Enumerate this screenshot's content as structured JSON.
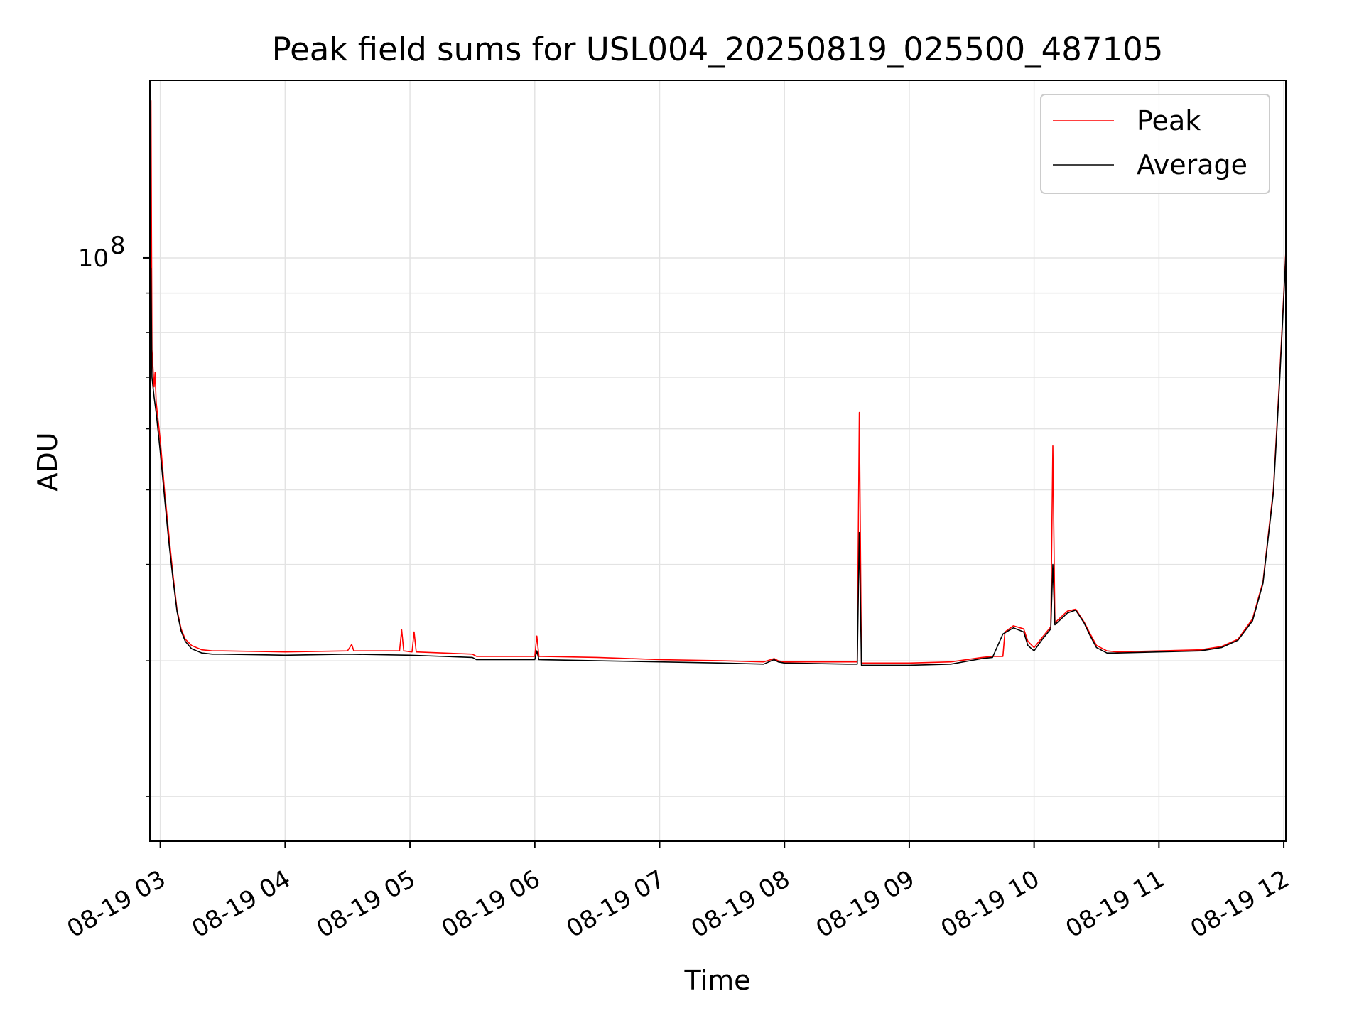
{
  "chart_data": {
    "type": "line",
    "title": "Peak field sums for USL004_20250819_025500_487105",
    "xlabel": "Time",
    "ylabel": "ADU",
    "y_scale": "log",
    "ylim": [
      17500000,
      170000000
    ],
    "xlim": [
      "2025-08-19 02:55",
      "2025-08-19 12:01"
    ],
    "x_ticks": [
      {
        "value": "2025-08-19 03:00",
        "label": "08-19 03"
      },
      {
        "value": "2025-08-19 04:00",
        "label": "08-19 04"
      },
      {
        "value": "2025-08-19 05:00",
        "label": "08-19 05"
      },
      {
        "value": "2025-08-19 06:00",
        "label": "08-19 06"
      },
      {
        "value": "2025-08-19 07:00",
        "label": "08-19 07"
      },
      {
        "value": "2025-08-19 08:00",
        "label": "08-19 08"
      },
      {
        "value": "2025-08-19 09:00",
        "label": "08-19 09"
      },
      {
        "value": "2025-08-19 10:00",
        "label": "08-19 10"
      },
      {
        "value": "2025-08-19 11:00",
        "label": "08-19 11"
      },
      {
        "value": "2025-08-19 12:00",
        "label": "08-19 12"
      }
    ],
    "y_major_ticks": [
      {
        "value": 100000000,
        "base": "10",
        "exponent": "8"
      }
    ],
    "y_minor_ticks": [
      20000000,
      30000000,
      40000000,
      50000000,
      60000000,
      70000000,
      80000000,
      90000000
    ],
    "grid": true,
    "legend_position": "top-right",
    "series": [
      {
        "name": "Peak",
        "color": "#ff0000",
        "x": [
          "2025-08-19 02:55",
          "2025-08-19 02:55:30",
          "2025-08-19 02:56",
          "2025-08-19 02:57",
          "2025-08-19 02:57:30",
          "2025-08-19 02:58",
          "2025-08-19 03:00",
          "2025-08-19 03:02",
          "2025-08-19 03:04",
          "2025-08-19 03:06",
          "2025-08-19 03:08",
          "2025-08-19 03:10",
          "2025-08-19 03:12",
          "2025-08-19 03:15",
          "2025-08-19 03:20",
          "2025-08-19 03:25",
          "2025-08-19 03:30",
          "2025-08-19 04:00",
          "2025-08-19 04:30",
          "2025-08-19 04:32",
          "2025-08-19 04:33",
          "2025-08-19 04:55",
          "2025-08-19 04:56",
          "2025-08-19 04:57",
          "2025-08-19 05:01",
          "2025-08-19 05:02",
          "2025-08-19 05:03",
          "2025-08-19 05:30",
          "2025-08-19 05:32",
          "2025-08-19 06:00",
          "2025-08-19 06:01",
          "2025-08-19 06:02",
          "2025-08-19 06:30",
          "2025-08-19 07:00",
          "2025-08-19 07:30",
          "2025-08-19 07:50",
          "2025-08-19 07:55",
          "2025-08-19 07:57",
          "2025-08-19 08:00",
          "2025-08-19 08:30",
          "2025-08-19 08:35",
          "2025-08-19 08:36",
          "2025-08-19 08:37",
          "2025-08-19 09:00",
          "2025-08-19 09:20",
          "2025-08-19 09:35",
          "2025-08-19 09:40",
          "2025-08-19 09:45",
          "2025-08-19 09:46",
          "2025-08-19 09:50",
          "2025-08-19 09:55",
          "2025-08-19 09:57",
          "2025-08-19 10:00",
          "2025-08-19 10:04",
          "2025-08-19 10:08",
          "2025-08-19 10:09",
          "2025-08-19 10:10",
          "2025-08-19 10:12",
          "2025-08-19 10:16",
          "2025-08-19 10:20",
          "2025-08-19 10:24",
          "2025-08-19 10:27",
          "2025-08-19 10:30",
          "2025-08-19 10:35",
          "2025-08-19 10:40",
          "2025-08-19 11:00",
          "2025-08-19 11:20",
          "2025-08-19 11:30",
          "2025-08-19 11:38",
          "2025-08-19 11:45",
          "2025-08-19 11:50",
          "2025-08-19 11:55",
          "2025-08-19 11:58",
          "2025-08-19 12:00",
          "2025-08-19 12:01"
        ],
        "y": [
          80000000,
          160000000,
          76000000,
          68000000,
          71000000,
          65000000,
          58000000,
          50000000,
          44000000,
          39000000,
          35000000,
          33000000,
          32000000,
          31400000,
          31000000,
          30900000,
          30900000,
          30800000,
          30900000,
          31500000,
          30900000,
          30900000,
          32900000,
          30900000,
          30800000,
          32700000,
          30800000,
          30600000,
          30400000,
          30400000,
          32300000,
          30400000,
          30300000,
          30100000,
          30000000,
          29900000,
          30200000,
          30000000,
          29900000,
          29900000,
          29900000,
          63000000,
          29800000,
          29800000,
          29900000,
          30300000,
          30400000,
          30400000,
          32700000,
          33300000,
          33000000,
          31800000,
          31200000,
          32200000,
          33200000,
          57000000,
          33600000,
          34000000,
          34800000,
          35000000,
          33700000,
          32500000,
          31400000,
          30900000,
          30800000,
          30900000,
          31000000,
          31300000,
          32000000,
          34000000,
          38000000,
          50000000,
          70000000,
          90000000,
          102000000
        ]
      },
      {
        "name": "Average",
        "color": "#000000",
        "x": [
          "2025-08-19 02:55",
          "2025-08-19 02:55:30",
          "2025-08-19 02:56",
          "2025-08-19 02:57",
          "2025-08-19 02:58",
          "2025-08-19 03:00",
          "2025-08-19 03:02",
          "2025-08-19 03:04",
          "2025-08-19 03:06",
          "2025-08-19 03:08",
          "2025-08-19 03:10",
          "2025-08-19 03:12",
          "2025-08-19 03:15",
          "2025-08-19 03:20",
          "2025-08-19 03:25",
          "2025-08-19 03:30",
          "2025-08-19 04:00",
          "2025-08-19 04:30",
          "2025-08-19 05:00",
          "2025-08-19 05:30",
          "2025-08-19 05:32",
          "2025-08-19 06:00",
          "2025-08-19 06:01",
          "2025-08-19 06:02",
          "2025-08-19 06:30",
          "2025-08-19 07:00",
          "2025-08-19 07:30",
          "2025-08-19 07:50",
          "2025-08-19 07:55",
          "2025-08-19 07:57",
          "2025-08-19 08:00",
          "2025-08-19 08:30",
          "2025-08-19 08:35",
          "2025-08-19 08:36",
          "2025-08-19 08:37",
          "2025-08-19 09:00",
          "2025-08-19 09:20",
          "2025-08-19 09:35",
          "2025-08-19 09:40",
          "2025-08-19 09:45",
          "2025-08-19 09:50",
          "2025-08-19 09:55",
          "2025-08-19 09:57",
          "2025-08-19 10:00",
          "2025-08-19 10:04",
          "2025-08-19 10:08",
          "2025-08-19 10:09",
          "2025-08-19 10:10",
          "2025-08-19 10:12",
          "2025-08-19 10:16",
          "2025-08-19 10:20",
          "2025-08-19 10:24",
          "2025-08-19 10:27",
          "2025-08-19 10:30",
          "2025-08-19 10:35",
          "2025-08-19 10:40",
          "2025-08-19 11:00",
          "2025-08-19 11:20",
          "2025-08-19 11:30",
          "2025-08-19 11:38",
          "2025-08-19 11:45",
          "2025-08-19 11:50",
          "2025-08-19 11:55",
          "2025-08-19 11:58",
          "2025-08-19 12:00",
          "2025-08-19 12:01"
        ],
        "y": [
          75000000,
          97000000,
          70000000,
          66000000,
          63000000,
          56000000,
          49000000,
          43000000,
          38500000,
          34800000,
          32800000,
          31800000,
          31100000,
          30700000,
          30600000,
          30600000,
          30500000,
          30600000,
          30500000,
          30300000,
          30100000,
          30100000,
          30900000,
          30100000,
          30000000,
          29900000,
          29800000,
          29700000,
          30100000,
          29900000,
          29800000,
          29700000,
          29700000,
          44000000,
          29600000,
          29600000,
          29700000,
          30200000,
          30300000,
          32500000,
          33100000,
          32700000,
          31400000,
          30900000,
          32000000,
          33000000,
          40000000,
          33400000,
          33800000,
          34600000,
          34900000,
          33600000,
          32300000,
          31200000,
          30700000,
          30700000,
          30800000,
          30900000,
          31200000,
          31900000,
          33800000,
          37800000,
          49500000,
          69000000,
          89000000,
          101000000
        ]
      }
    ]
  }
}
